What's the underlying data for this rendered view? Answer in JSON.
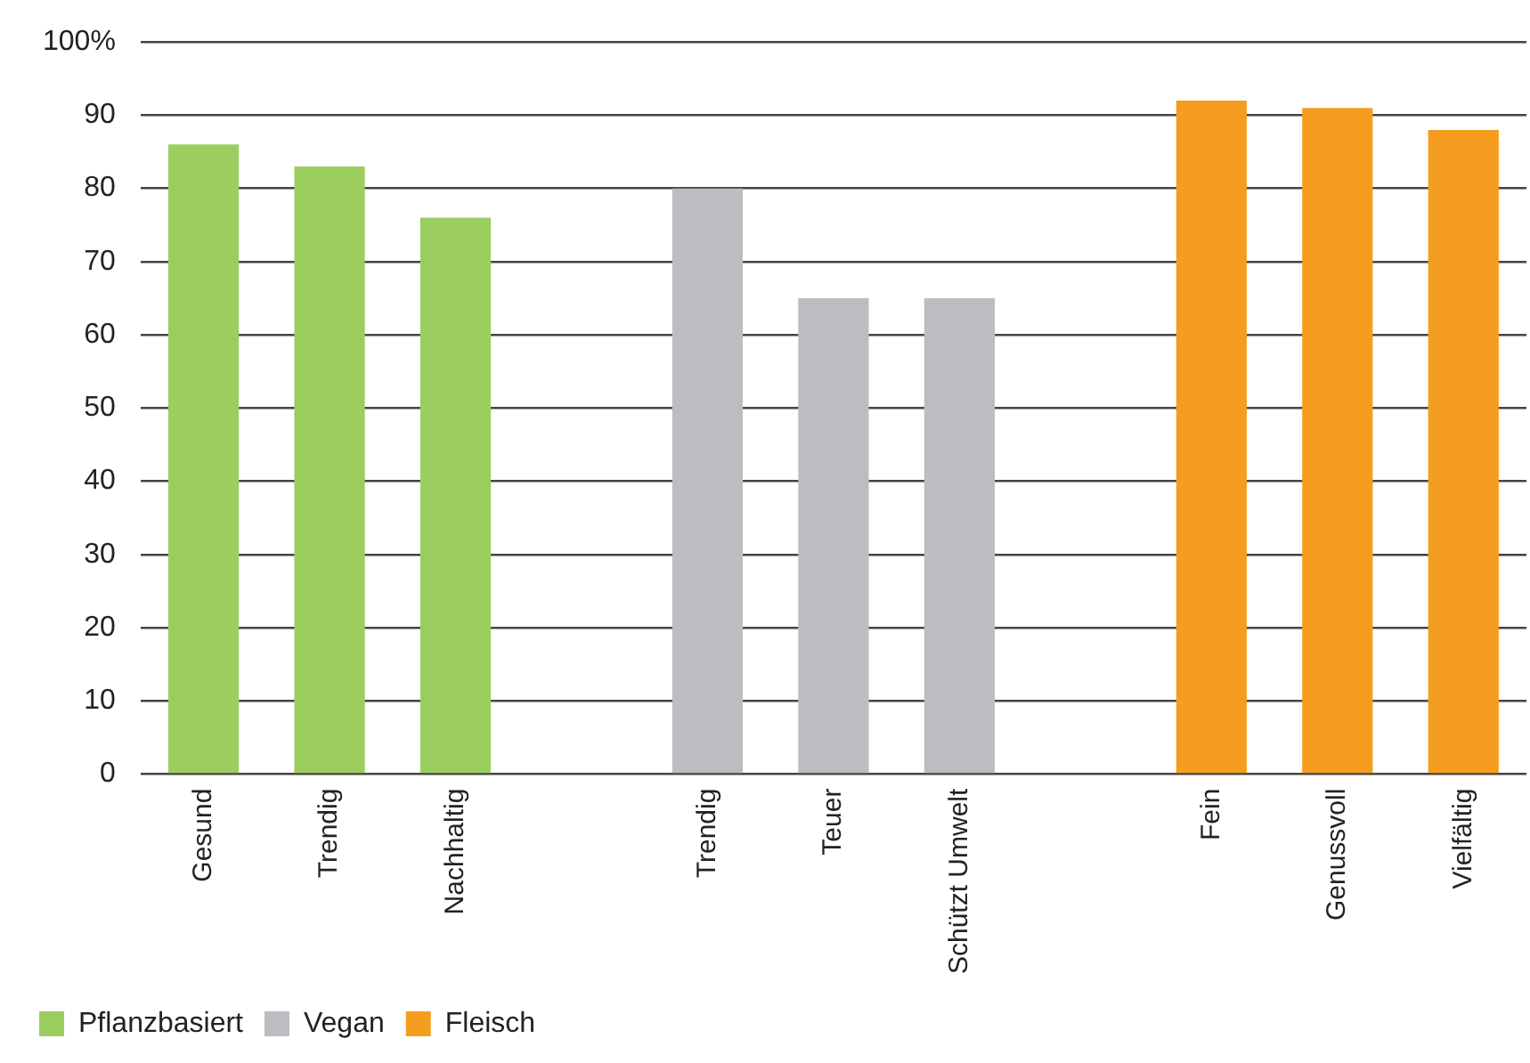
{
  "chart_data": {
    "type": "bar",
    "categories": [
      "Gesund",
      "Trendig",
      "Nachhaltig",
      null,
      "Trendig",
      "Teuer",
      "Schützt Umwelt",
      null,
      "Fein",
      "Genussvoll",
      "Vielfältig"
    ],
    "series": [
      {
        "name": "Pflanzbasiert",
        "color": "#9ccd5f",
        "values": [
          86,
          83,
          76,
          null,
          null,
          null,
          null,
          null,
          null,
          null,
          null
        ]
      },
      {
        "name": "Vegan",
        "color": "#bcbdc1",
        "values": [
          null,
          null,
          null,
          null,
          80,
          65,
          65,
          null,
          null,
          null,
          null
        ]
      },
      {
        "name": "Fleisch",
        "color": "#f59d1f",
        "values": [
          null,
          null,
          null,
          null,
          null,
          null,
          null,
          null,
          92,
          91,
          88
        ]
      }
    ],
    "ylim": [
      0,
      100
    ],
    "yticks": [
      0,
      10,
      20,
      30,
      40,
      50,
      60,
      70,
      80,
      90,
      {
        "value": 100,
        "label": "100%"
      }
    ],
    "grid": "y",
    "legend": "bottom left"
  }
}
